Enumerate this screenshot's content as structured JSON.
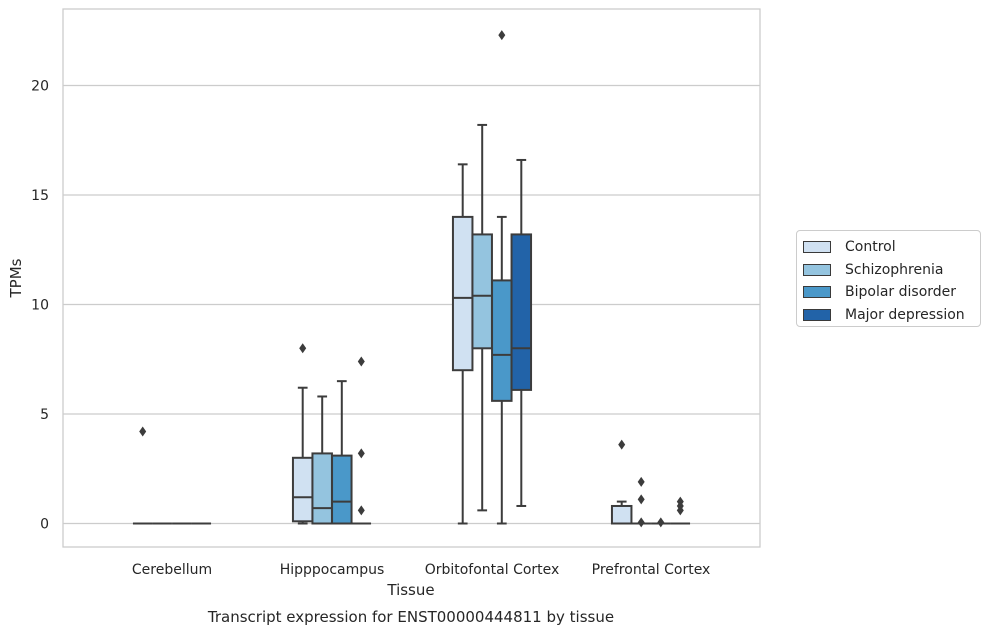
{
  "chart_data": {
    "type": "box",
    "title": "Transcript expression for ENST00000444811 by tissue",
    "xlabel": "Tissue",
    "ylabel": "TPMs",
    "ylim": [
      -1.1,
      23.5
    ],
    "yticks": [
      0,
      5,
      10,
      15,
      20
    ],
    "grid": true,
    "legend_position": "right",
    "categories": [
      "Cerebellum",
      "Hipppocampus",
      "Orbitofontal Cortex",
      "Prefrontal Cortex"
    ],
    "series": [
      {
        "name": "Control",
        "color": "#d0e1f2",
        "boxes": [
          {
            "q1": 0,
            "median": 0,
            "q3": 0,
            "whisker_low": 0,
            "whisker_high": 0,
            "outliers": [
              4.2
            ]
          },
          {
            "q1": 0.1,
            "median": 1.2,
            "q3": 3.0,
            "whisker_low": 0.0,
            "whisker_high": 6.2,
            "outliers": [
              8.0
            ]
          },
          {
            "q1": 7.0,
            "median": 10.3,
            "q3": 14.0,
            "whisker_low": 0.0,
            "whisker_high": 16.4,
            "outliers": []
          },
          {
            "q1": 0.0,
            "median": 0.0,
            "q3": 0.8,
            "whisker_low": 0.0,
            "whisker_high": 1.0,
            "outliers": [
              3.6
            ]
          }
        ]
      },
      {
        "name": "Schizophrenia",
        "color": "#94c4df",
        "boxes": [
          {
            "q1": 0,
            "median": 0,
            "q3": 0,
            "whisker_low": 0,
            "whisker_high": 0,
            "outliers": []
          },
          {
            "q1": 0.0,
            "median": 0.7,
            "q3": 3.2,
            "whisker_low": 0.0,
            "whisker_high": 5.8,
            "outliers": []
          },
          {
            "q1": 8.0,
            "median": 10.4,
            "q3": 13.2,
            "whisker_low": 0.6,
            "whisker_high": 18.2,
            "outliers": []
          },
          {
            "q1": 0,
            "median": 0,
            "q3": 0,
            "whisker_low": 0,
            "whisker_high": 0,
            "outliers": [
              0.05,
              1.1,
              1.9
            ]
          }
        ]
      },
      {
        "name": "Bipolar disorder",
        "color": "#4a98c9",
        "boxes": [
          {
            "q1": 0,
            "median": 0,
            "q3": 0,
            "whisker_low": 0,
            "whisker_high": 0,
            "outliers": []
          },
          {
            "q1": 0.0,
            "median": 1.0,
            "q3": 3.1,
            "whisker_low": 0.0,
            "whisker_high": 6.5,
            "outliers": []
          },
          {
            "q1": 5.6,
            "median": 7.7,
            "q3": 11.1,
            "whisker_low": 0.0,
            "whisker_high": 14.0,
            "outliers": [
              22.3
            ]
          },
          {
            "q1": 0,
            "median": 0,
            "q3": 0,
            "whisker_low": 0,
            "whisker_high": 0,
            "outliers": [
              0.05
            ]
          }
        ]
      },
      {
        "name": "Major depression",
        "color": "#2263a8",
        "boxes": [
          {
            "q1": 0,
            "median": 0,
            "q3": 0,
            "whisker_low": 0,
            "whisker_high": 0,
            "outliers": []
          },
          {
            "q1": 0,
            "median": 0,
            "q3": 0,
            "whisker_low": 0,
            "whisker_high": 0,
            "outliers": [
              0.6,
              3.2,
              7.4
            ]
          },
          {
            "q1": 6.1,
            "median": 8.0,
            "q3": 13.2,
            "whisker_low": 0.8,
            "whisker_high": 16.6,
            "outliers": []
          },
          {
            "q1": 0,
            "median": 0,
            "q3": 0,
            "whisker_low": 0,
            "whisker_high": 0,
            "outliers": [
              0.6,
              0.8,
              1.0
            ]
          }
        ]
      }
    ]
  }
}
